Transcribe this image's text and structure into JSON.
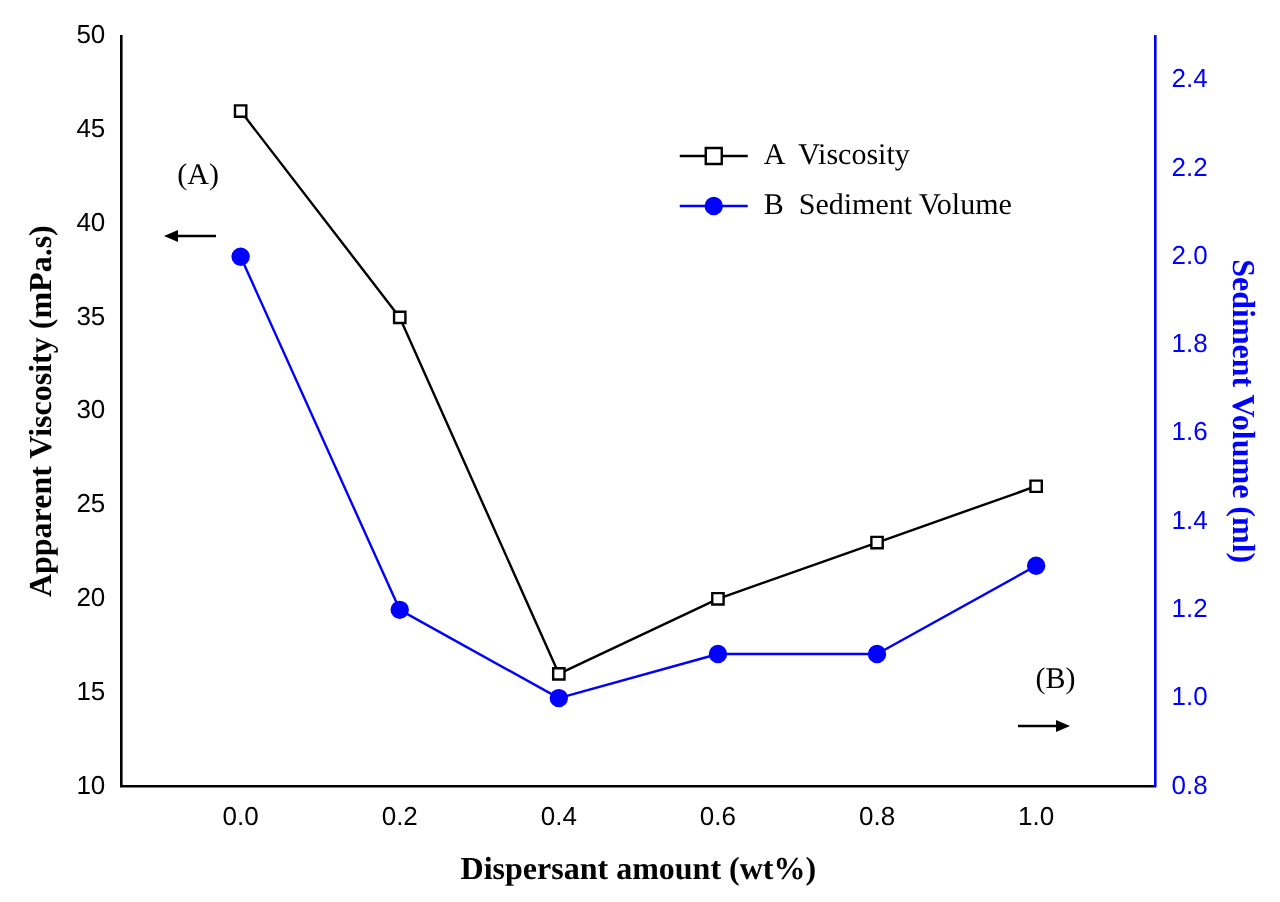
{
  "chart_data": {
    "type": "line",
    "xlabel": "Dispersant amount (wt%)",
    "ylabel": "Apparent Viscosity (mPa.s)",
    "y2label": "Sediment Volume (ml)",
    "x": [
      0,
      0.2,
      0.4,
      0.6,
      0.8,
      1.0
    ],
    "xlim": [
      -0.15,
      1.15
    ],
    "xticks": [
      {
        "value": 0,
        "label": "0.0"
      },
      {
        "value": 0.2,
        "label": "0.2"
      },
      {
        "value": 0.4,
        "label": "0.4"
      },
      {
        "value": 0.6,
        "label": "0.6"
      },
      {
        "value": 0.8,
        "label": "0.8"
      },
      {
        "value": 1.0,
        "label": "1.0"
      }
    ],
    "ylim": [
      10,
      50
    ],
    "yticks": [
      10,
      15,
      20,
      25,
      30,
      35,
      40,
      45,
      50
    ],
    "y2lim": [
      0.8,
      2.5
    ],
    "y2ticks": [
      {
        "value": 0.8,
        "label": "0.8"
      },
      {
        "value": 1.0,
        "label": "1.0"
      },
      {
        "value": 1.2,
        "label": "1.2"
      },
      {
        "value": 1.4,
        "label": "1.4"
      },
      {
        "value": 1.6,
        "label": "1.6"
      },
      {
        "value": 1.8,
        "label": "1.8"
      },
      {
        "value": 2.0,
        "label": "2.0"
      },
      {
        "value": 2.2,
        "label": "2.2"
      },
      {
        "value": 2.4,
        "label": "2.4"
      }
    ],
    "series": [
      {
        "name": "A  Viscosity",
        "color": "#000000",
        "marker": "square",
        "values": [
          46,
          35,
          16,
          20,
          23,
          26
        ]
      },
      {
        "name": "B  Sediment Volume",
        "color": "#0000ff",
        "marker": "circle",
        "axis": "y2",
        "values": [
          2.0,
          1.2,
          1.0,
          1.1,
          1.1,
          1.3
        ]
      }
    ],
    "annotations": [
      "(A)",
      "(B)"
    ],
    "legend": "top right",
    "grid": false
  }
}
